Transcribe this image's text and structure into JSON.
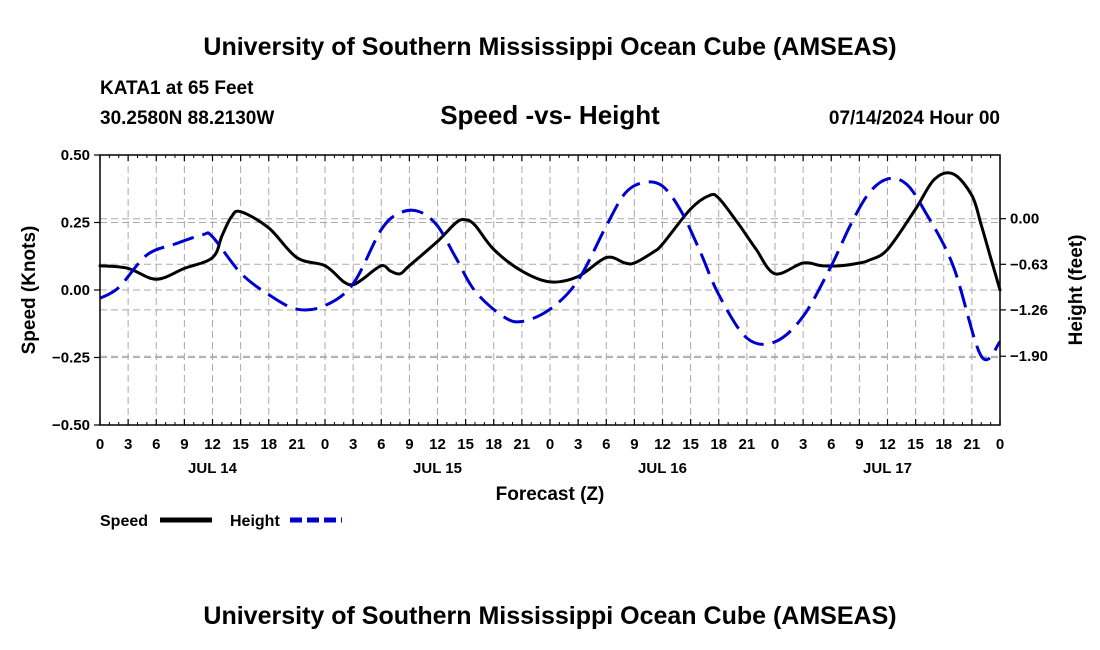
{
  "header": {
    "title": "University of Southern Mississippi Ocean Cube (AMSEAS)",
    "footer_title": "University of Southern Mississippi Ocean Cube (AMSEAS)",
    "station": "KATA1 at 65 Feet",
    "coords": "30.2580N  88.2130W",
    "date": "07/14/2024 Hour 00"
  },
  "chart_data": {
    "type": "line",
    "title": "Speed -vs- Height",
    "xlabel": "Forecast (Z)",
    "ylabel_left": "Speed (Knots)",
    "ylabel_right": "Height (feet)",
    "x_range_hours": [
      0,
      96
    ],
    "x_tick_step_hours": 3,
    "x_tick_labels": [
      "0",
      "3",
      "6",
      "9",
      "12",
      "15",
      "18",
      "21",
      "0",
      "3",
      "6",
      "9",
      "12",
      "15",
      "18",
      "21",
      "0",
      "3",
      "6",
      "9",
      "12",
      "15",
      "18",
      "21",
      "0",
      "3",
      "6",
      "9",
      "12",
      "15",
      "18",
      "21",
      "0"
    ],
    "day_labels": [
      {
        "hour": 12,
        "label": "JUL 14"
      },
      {
        "hour": 36,
        "label": "JUL 15"
      },
      {
        "hour": 60,
        "label": "JUL 16"
      },
      {
        "hour": 84,
        "label": "JUL 17"
      }
    ],
    "y_left": {
      "min": -0.5,
      "max": 0.5,
      "ticks": [
        -0.5,
        -0.25,
        0.0,
        0.25,
        0.5
      ],
      "tick_labels": [
        "−0.50",
        "−0.25",
        "0.00",
        "0.25",
        "0.50"
      ]
    },
    "y_right": {
      "min": -2.85,
      "max": 0.88,
      "ticks": [
        0.0,
        -0.63,
        -1.26,
        -1.9
      ],
      "tick_labels": [
        "0.00",
        "−0.63",
        "−1.26",
        "−1.90"
      ]
    },
    "grid": true,
    "series": [
      {
        "name": "Speed",
        "axis": "left",
        "color": "#000000",
        "dash": "solid",
        "x": [
          0,
          3,
          6,
          9,
          12,
          13,
          14,
          15,
          18,
          21,
          24,
          26,
          27,
          28,
          30,
          31,
          32,
          33,
          36,
          38,
          39,
          40,
          42,
          45,
          48,
          51,
          54,
          56,
          57,
          59,
          60,
          63,
          65,
          66,
          68,
          69,
          70,
          72,
          75,
          77,
          79,
          81,
          82,
          84,
          87,
          89,
          91,
          93,
          94,
          95,
          96
        ],
        "y": [
          0.09,
          0.08,
          0.04,
          0.08,
          0.12,
          0.2,
          0.27,
          0.29,
          0.23,
          0.12,
          0.09,
          0.03,
          0.02,
          0.04,
          0.09,
          0.07,
          0.06,
          0.09,
          0.18,
          0.25,
          0.26,
          0.24,
          0.15,
          0.07,
          0.03,
          0.05,
          0.12,
          0.1,
          0.1,
          0.14,
          0.17,
          0.3,
          0.35,
          0.34,
          0.25,
          0.2,
          0.15,
          0.06,
          0.1,
          0.09,
          0.09,
          0.1,
          0.11,
          0.15,
          0.3,
          0.41,
          0.43,
          0.35,
          0.24,
          0.12,
          0.0
        ]
      },
      {
        "name": "Height",
        "axis": "right",
        "color": "#0000cc",
        "dash": "dashed",
        "x": [
          0,
          2,
          5,
          8,
          11,
          12,
          15,
          18,
          21,
          24,
          27,
          30,
          32,
          34,
          36,
          38,
          40,
          43,
          45,
          48,
          51,
          54,
          56,
          58,
          60,
          62,
          64,
          66,
          69,
          72,
          75,
          78,
          80,
          82,
          84,
          86,
          88,
          91,
          94,
          96
        ],
        "y": [
          -1.1,
          -0.95,
          -0.5,
          -0.35,
          -0.22,
          -0.25,
          -0.75,
          -1.05,
          -1.25,
          -1.2,
          -0.9,
          -0.15,
          0.08,
          0.1,
          -0.1,
          -0.55,
          -1.0,
          -1.35,
          -1.42,
          -1.25,
          -0.85,
          -0.1,
          0.35,
          0.5,
          0.45,
          0.1,
          -0.45,
          -1.05,
          -1.65,
          -1.7,
          -1.35,
          -0.65,
          -0.1,
          0.35,
          0.55,
          0.48,
          0.1,
          -0.65,
          -1.9,
          -1.7
        ]
      }
    ]
  },
  "legend": {
    "speed_label": "Speed",
    "height_label": "Height"
  }
}
